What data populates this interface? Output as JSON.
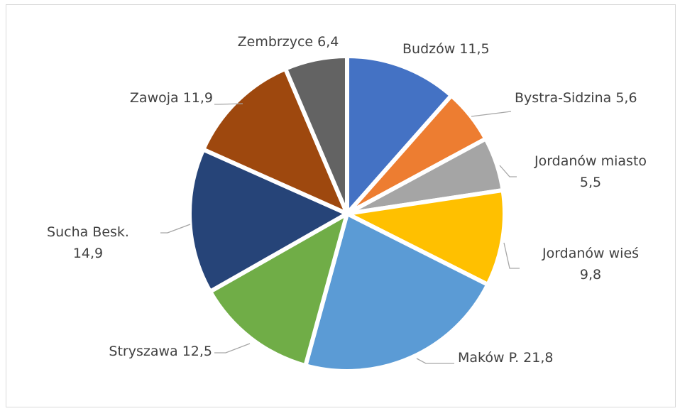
{
  "chart_data": {
    "type": "pie",
    "title": "",
    "slices": [
      {
        "label": "Budzów",
        "value": 11.5,
        "value_text": "11,5",
        "color": "#4472C4"
      },
      {
        "label": "Bystra-Sidzina",
        "value": 5.6,
        "value_text": "5,6",
        "color": "#ED7D31"
      },
      {
        "label": "Jordanów miasto",
        "value": 5.5,
        "value_text": "5,5",
        "color": "#A5A5A5"
      },
      {
        "label": "Jordanów wieś",
        "value": 9.8,
        "value_text": "9,8",
        "color": "#FFC000"
      },
      {
        "label": "Maków P.",
        "value": 21.8,
        "value_text": "21,8",
        "color": "#5B9BD5"
      },
      {
        "label": "Stryszawa",
        "value": 12.5,
        "value_text": "12,5",
        "color": "#70AD47"
      },
      {
        "label": "Sucha Besk.",
        "value": 14.9,
        "value_text": "14,9",
        "color": "#264478"
      },
      {
        "label": "Zawoja",
        "value": 11.9,
        "value_text": "11,9",
        "color": "#9E480E"
      },
      {
        "label": "Zembrzyce",
        "value": 6.4,
        "value_text": "6,4",
        "color": "#636363"
      }
    ],
    "legend": "none",
    "data_labels": "outside with leader lines"
  }
}
